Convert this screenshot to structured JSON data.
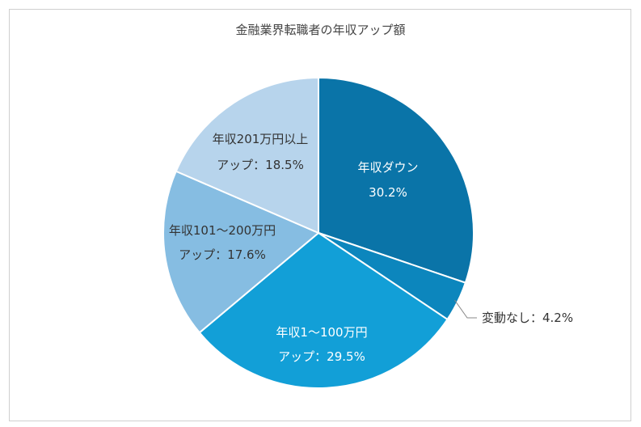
{
  "chart_data": {
    "type": "pie",
    "title": "金融業界転職者の年収アップ額",
    "slices": [
      {
        "label_line1": "年収ダウン",
        "label_line2": "30.2%",
        "value": 30.2,
        "color": "#0a74a8",
        "text_color": "#ffffff"
      },
      {
        "label_line1": "変動なし：4.2%",
        "label_line2": "",
        "value": 4.2,
        "color": "#0c86bd",
        "text_color": "#333333"
      },
      {
        "label_line1": "年収1～100万円",
        "label_line2": "アップ：29.5%",
        "value": 29.5,
        "color": "#129fd7",
        "text_color": "#ffffff"
      },
      {
        "label_line1": "年収101～200万円",
        "label_line2": "アップ：17.6%",
        "value": 17.6,
        "color": "#86bde2",
        "text_color": "#333333"
      },
      {
        "label_line1": "年収201万円以上",
        "label_line2": "アップ：18.5%",
        "value": 18.5,
        "color": "#b7d4ec",
        "text_color": "#333333"
      }
    ]
  }
}
